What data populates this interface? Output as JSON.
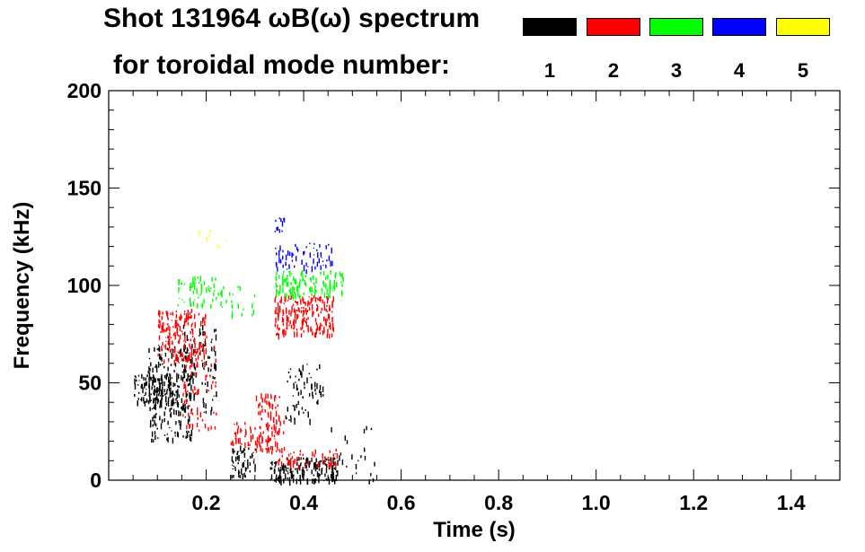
{
  "chart_data": {
    "type": "scatter",
    "title_line1": "Shot 131964 ωB(ω) spectrum",
    "title_line2": "for toroidal mode number:",
    "xlabel": "Time (s)",
    "ylabel": "Frequency (kHz)",
    "xlim": [
      0.0,
      1.5
    ],
    "ylim": [
      0,
      200
    ],
    "x_ticks": [
      0.2,
      0.4,
      0.6,
      0.8,
      1.0,
      1.2,
      1.4
    ],
    "x_tick_labels": [
      "0.2",
      "0.4",
      "0.6",
      "0.8",
      "1.0",
      "1.2",
      "1.4"
    ],
    "y_ticks": [
      0,
      50,
      100,
      150,
      200
    ],
    "y_tick_labels": [
      "0",
      "50",
      "100",
      "150",
      "200"
    ],
    "legend": [
      {
        "mode": "1",
        "color": "#000000"
      },
      {
        "mode": "2",
        "color": "#ff0000"
      },
      {
        "mode": "3",
        "color": "#00ff00"
      },
      {
        "mode": "4",
        "color": "#0000ff"
      },
      {
        "mode": "5",
        "color": "#ffff00"
      }
    ],
    "series": [
      {
        "name": "n=1",
        "color": "#000000",
        "regions": [
          {
            "t": [
              0.05,
              0.14
            ],
            "f": [
              40,
              55
            ],
            "density": 0.8
          },
          {
            "t": [
              0.08,
              0.17
            ],
            "f": [
              20,
              70
            ],
            "density": 0.45
          },
          {
            "t": [
              0.15,
              0.22
            ],
            "f": [
              35,
              80
            ],
            "density": 0.3
          },
          {
            "t": [
              0.25,
              0.3
            ],
            "f": [
              2,
              18
            ],
            "density": 0.7
          },
          {
            "t": [
              0.33,
              0.47
            ],
            "f": [
              0,
              12
            ],
            "density": 0.95
          },
          {
            "t": [
              0.36,
              0.44
            ],
            "f": [
              30,
              60
            ],
            "density": 0.25
          },
          {
            "t": [
              0.45,
              0.55
            ],
            "f": [
              0,
              30
            ],
            "density": 0.08
          }
        ]
      },
      {
        "name": "n=2",
        "color": "#ff0000",
        "regions": [
          {
            "t": [
              0.1,
              0.2
            ],
            "f": [
              60,
              88
            ],
            "density": 0.6
          },
          {
            "t": [
              0.15,
              0.22
            ],
            "f": [
              25,
              70
            ],
            "density": 0.2
          },
          {
            "t": [
              0.25,
              0.3
            ],
            "f": [
              18,
              30
            ],
            "density": 0.5
          },
          {
            "t": [
              0.3,
              0.36
            ],
            "f": [
              15,
              45
            ],
            "density": 0.55
          },
          {
            "t": [
              0.34,
              0.47
            ],
            "f": [
              8,
              16
            ],
            "density": 0.45
          },
          {
            "t": [
              0.34,
              0.46
            ],
            "f": [
              75,
              95
            ],
            "density": 0.8
          }
        ]
      },
      {
        "name": "n=3",
        "color": "#00ff00",
        "regions": [
          {
            "t": [
              0.14,
              0.22
            ],
            "f": [
              90,
              105
            ],
            "density": 0.45
          },
          {
            "t": [
              0.22,
              0.3
            ],
            "f": [
              85,
              100
            ],
            "density": 0.2
          },
          {
            "t": [
              0.34,
              0.48
            ],
            "f": [
              95,
              108
            ],
            "density": 0.65
          }
        ]
      },
      {
        "name": "n=4",
        "color": "#0000ff",
        "regions": [
          {
            "t": [
              0.34,
              0.46
            ],
            "f": [
              108,
              122
            ],
            "density": 0.35
          },
          {
            "t": [
              0.34,
              0.36
            ],
            "f": [
              125,
              135
            ],
            "density": 0.5
          }
        ]
      },
      {
        "name": "n=5",
        "color": "#ffff00",
        "regions": [
          {
            "t": [
              0.18,
              0.24
            ],
            "f": [
              120,
              130
            ],
            "density": 0.1
          }
        ]
      }
    ]
  }
}
